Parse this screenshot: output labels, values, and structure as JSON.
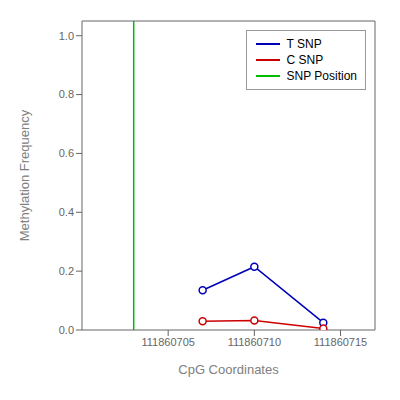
{
  "chart_data": {
    "type": "line",
    "xlabel": "CpG Coordinates",
    "ylabel": "Methylation Frequency",
    "x": [
      111860707,
      111860710,
      111860714
    ],
    "series": [
      {
        "name": "T SNP",
        "color": "#0000bb",
        "values": [
          0.135,
          0.215,
          0.025
        ],
        "marker": "circle"
      },
      {
        "name": "C SNP",
        "color": "#cc0000",
        "values": [
          0.03,
          0.032,
          0.005
        ],
        "marker": "circle"
      },
      {
        "name": "SNP Position",
        "color": "#00bb00",
        "type": "vline",
        "x": 111860703
      }
    ],
    "xlim": [
      111860700,
      111860717
    ],
    "ylim": [
      0.0,
      1.05
    ],
    "xticks": [
      111860705,
      111860710,
      111860715
    ],
    "yticks": [
      {
        "value": 0,
        "label": "0.0"
      },
      0.2,
      0.4,
      0.6,
      0.8,
      {
        "value": 1,
        "label": "1.0"
      }
    ],
    "legend": "upper right"
  }
}
